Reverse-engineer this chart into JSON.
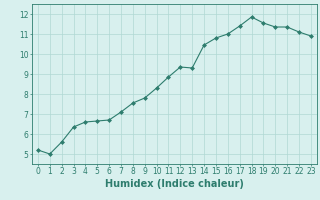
{
  "x": [
    0,
    1,
    2,
    3,
    4,
    5,
    6,
    7,
    8,
    9,
    10,
    11,
    12,
    13,
    14,
    15,
    16,
    17,
    18,
    19,
    20,
    21,
    22,
    23
  ],
  "y": [
    5.2,
    5.0,
    5.6,
    6.35,
    6.6,
    6.65,
    6.7,
    7.1,
    7.55,
    7.8,
    8.3,
    8.85,
    9.35,
    9.3,
    10.45,
    10.8,
    11.0,
    11.4,
    11.85,
    11.55,
    11.35,
    11.35,
    11.1,
    10.9
  ],
  "line_color": "#2e7d6e",
  "marker": "D",
  "marker_size": 2.0,
  "bg_color": "#d8f0ee",
  "grid_color": "#b0d8d4",
  "xlabel": "Humidex (Indice chaleur)",
  "xlabel_fontsize": 7,
  "ylabel_ticks": [
    5,
    6,
    7,
    8,
    9,
    10,
    11,
    12
  ],
  "xlim": [
    -0.5,
    23.5
  ],
  "ylim": [
    4.5,
    12.5
  ],
  "xtick_labels": [
    "0",
    "1",
    "2",
    "3",
    "4",
    "5",
    "6",
    "7",
    "8",
    "9",
    "10",
    "11",
    "12",
    "13",
    "14",
    "15",
    "16",
    "17",
    "18",
    "19",
    "20",
    "21",
    "22",
    "23"
  ],
  "tick_fontsize": 5.5,
  "axis_color": "#2e7d6e",
  "spine_color": "#2e7d6e",
  "linewidth": 0.8
}
